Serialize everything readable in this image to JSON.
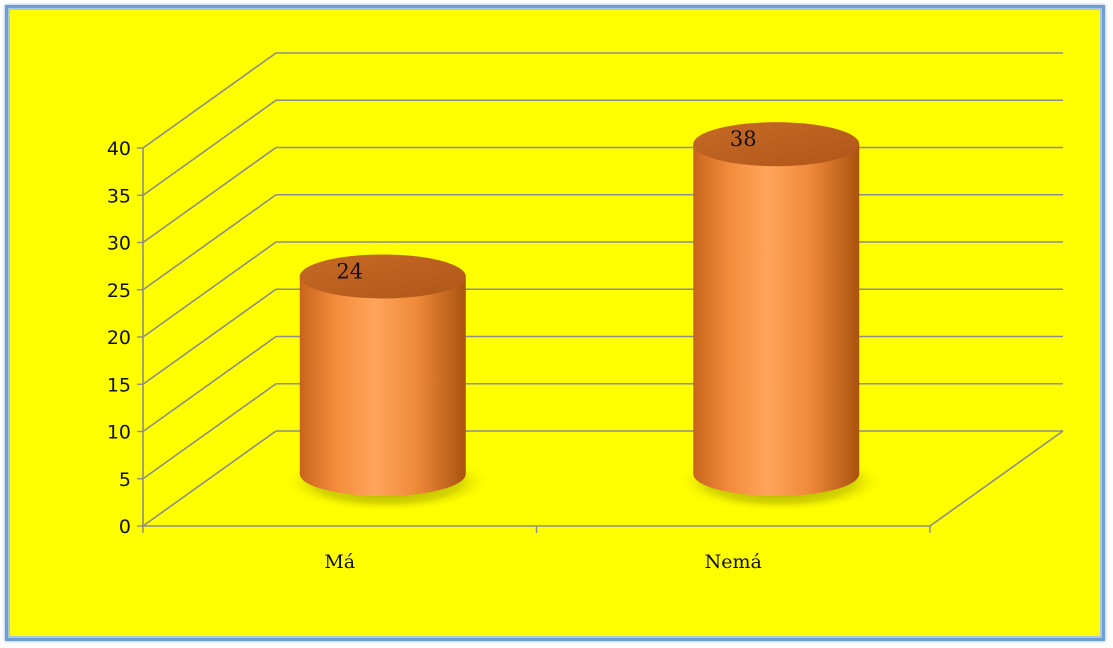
{
  "chart_data": {
    "type": "bar",
    "categories": [
      "Má",
      "Nemá"
    ],
    "values": [
      24,
      38
    ],
    "ylim": [
      0,
      40
    ],
    "yticks": [
      0,
      5,
      10,
      15,
      20,
      25,
      30,
      35,
      40
    ],
    "grid": true,
    "legend": "none",
    "colors": {
      "background": "#ffff00",
      "bar": "#f79646",
      "bar_dark": "#b85c14",
      "grid": "#8c8c8c"
    }
  }
}
